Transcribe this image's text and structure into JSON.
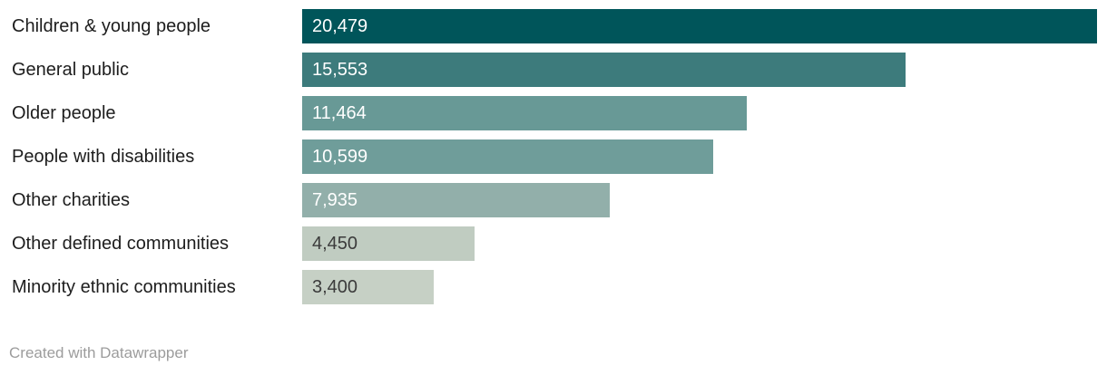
{
  "chart_data": {
    "type": "bar",
    "orientation": "horizontal",
    "title": "",
    "xlabel": "",
    "ylabel": "",
    "xlim": [
      0,
      20479
    ],
    "grid": false,
    "legend": false,
    "categories": [
      "Children & young people",
      "General public",
      "Older people",
      "People with disabilities",
      "Other charities",
      "Other defined communities",
      "Minority ethnic communities"
    ],
    "values": [
      20479,
      15553,
      11464,
      10599,
      7935,
      4450,
      3400
    ],
    "value_labels": [
      "20,479",
      "15,553",
      "11,464",
      "10,599",
      "7,935",
      "4,450",
      "3,400"
    ],
    "bar_colors": [
      "#00555a",
      "#3d7b7c",
      "#689996",
      "#6f9d9a",
      "#92afaa",
      "#c0ccc1",
      "#c6d0c5"
    ],
    "value_label_colors": [
      "#ffffff",
      "#ffffff",
      "#ffffff",
      "#ffffff",
      "#ffffff",
      "#3b3b3b",
      "#3b3b3b"
    ]
  },
  "footer": {
    "credit": "Created with Datawrapper"
  },
  "colors": {
    "background": "#ffffff",
    "category_label": "#1d1d1d",
    "credit": "#9c9c9c"
  }
}
